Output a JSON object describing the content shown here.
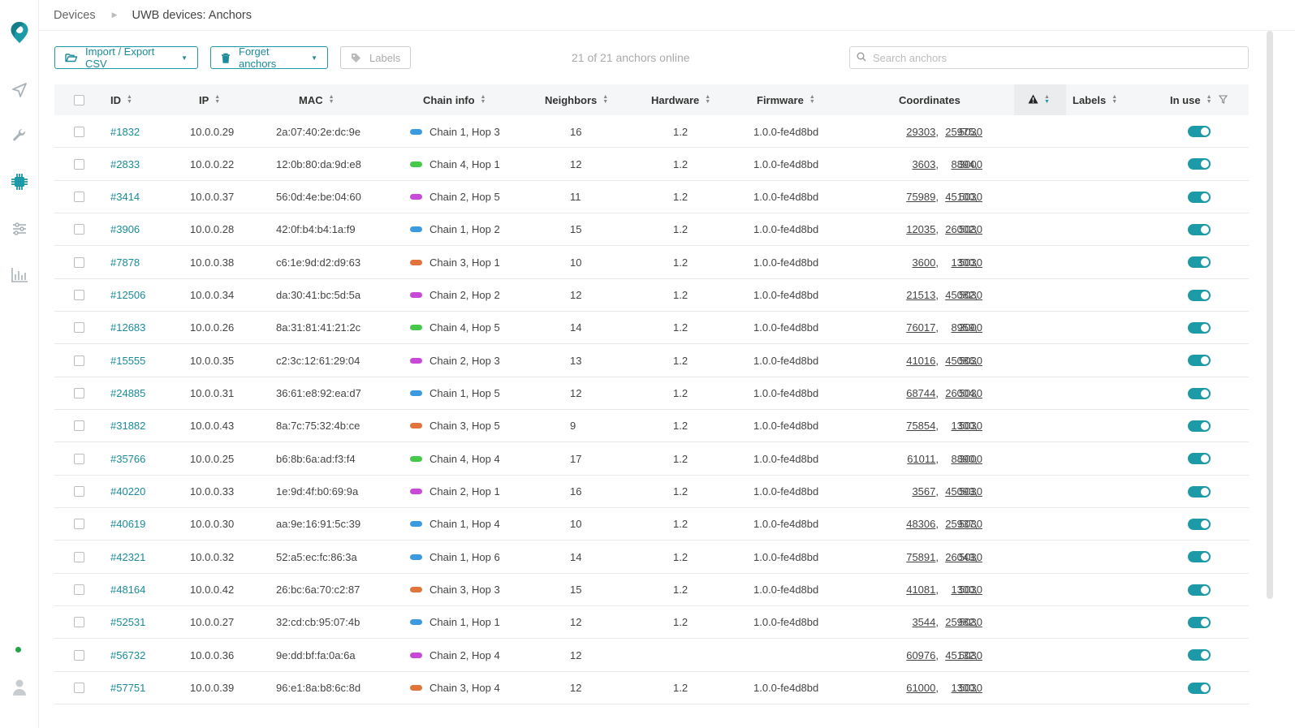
{
  "breadcrumb": {
    "root": "Devices",
    "current": "UWB devices: Anchors"
  },
  "toolbar": {
    "import_label": "Import / Export CSV",
    "forget_label": "Forget anchors",
    "labels_label": "Labels",
    "online_status": "21 of 21 anchors online",
    "search_placeholder": "Search anchors"
  },
  "columns": {
    "id": "ID",
    "ip": "IP",
    "mac": "MAC",
    "chain": "Chain info",
    "neighbors": "Neighbors",
    "hardware": "Hardware",
    "firmware": "Firmware",
    "coordinates": "Coordinates",
    "labels": "Labels",
    "in_use": "In use"
  },
  "colors": {
    "accent": "#1c9aa8",
    "chain1": "#3b9ae0",
    "chain2": "#c849d8",
    "chain3": "#e0743a",
    "chain4": "#46c94a",
    "online": "#1fa44a"
  },
  "rows": [
    {
      "id": "#1832",
      "ip": "10.0.0.29",
      "mac": "2a:07:40:2e:dc:9e",
      "chain": "Chain 1, Hop 3",
      "chain_color": "#3b9ae0",
      "neighbors": "16",
      "hardware": "1.2",
      "firmware": "1.0.0-fe4d8bd",
      "x": "29303",
      "y": "25975",
      "z": "5030",
      "in_use": true
    },
    {
      "id": "#2833",
      "ip": "10.0.0.22",
      "mac": "12:0b:80:da:9d:e8",
      "chain": "Chain 4, Hop 1",
      "chain_color": "#46c94a",
      "neighbors": "12",
      "hardware": "1.2",
      "firmware": "1.0.0-fe4d8bd",
      "x": "3603",
      "y": "8894",
      "z": "3000",
      "in_use": true
    },
    {
      "id": "#3414",
      "ip": "10.0.0.37",
      "mac": "56:0d:4e:be:04:60",
      "chain": "Chain 2, Hop 5",
      "chain_color": "#c849d8",
      "neighbors": "11",
      "hardware": "1.2",
      "firmware": "1.0.0-fe4d8bd",
      "x": "75989",
      "y": "45100",
      "z": "5030",
      "in_use": true
    },
    {
      "id": "#3906",
      "ip": "10.0.0.28",
      "mac": "42:0f:b4:b4:1a:f9",
      "chain": "Chain 1, Hop 2",
      "chain_color": "#3b9ae0",
      "neighbors": "15",
      "hardware": "1.2",
      "firmware": "1.0.0-fe4d8bd",
      "x": "12035",
      "y": "26002",
      "z": "5030",
      "in_use": true
    },
    {
      "id": "#7878",
      "ip": "10.0.0.38",
      "mac": "c6:1e:9d:d2:d9:63",
      "chain": "Chain 3, Hop 1",
      "chain_color": "#e0743a",
      "neighbors": "10",
      "hardware": "1.2",
      "firmware": "1.0.0-fe4d8bd",
      "x": "3600",
      "y": "1300",
      "z": "5030",
      "in_use": true
    },
    {
      "id": "#12506",
      "ip": "10.0.0.34",
      "mac": "da:30:41:bc:5d:5a",
      "chain": "Chain 2, Hop 2",
      "chain_color": "#c849d8",
      "neighbors": "12",
      "hardware": "1.2",
      "firmware": "1.0.0-fe4d8bd",
      "x": "21513",
      "y": "45082",
      "z": "5030",
      "in_use": true
    },
    {
      "id": "#12683",
      "ip": "10.0.0.26",
      "mac": "8a:31:81:41:21:2c",
      "chain": "Chain 4, Hop 5",
      "chain_color": "#46c94a",
      "neighbors": "14",
      "hardware": "1.2",
      "firmware": "1.0.0-fe4d8bd",
      "x": "76017",
      "y": "8959",
      "z": "3000",
      "in_use": true
    },
    {
      "id": "#15555",
      "ip": "10.0.0.35",
      "mac": "c2:3c:12:61:29:04",
      "chain": "Chain 2, Hop 3",
      "chain_color": "#c849d8",
      "neighbors": "13",
      "hardware": "1.2",
      "firmware": "1.0.0-fe4d8bd",
      "x": "41016",
      "y": "45086",
      "z": "5030",
      "in_use": true
    },
    {
      "id": "#24885",
      "ip": "10.0.0.31",
      "mac": "36:61:e8:92:ea:d7",
      "chain": "Chain 1, Hop 5",
      "chain_color": "#3b9ae0",
      "neighbors": "12",
      "hardware": "1.2",
      "firmware": "1.0.0-fe4d8bd",
      "x": "68744",
      "y": "26004",
      "z": "5030",
      "in_use": true
    },
    {
      "id": "#31882",
      "ip": "10.0.0.43",
      "mac": "8a:7c:75:32:4b:ce",
      "chain": "Chain 3, Hop 5",
      "chain_color": "#e0743a",
      "neighbors": "9",
      "hardware": "1.2",
      "firmware": "1.0.0-fe4d8bd",
      "x": "75854",
      "y": "1300",
      "z": "5030",
      "in_use": true
    },
    {
      "id": "#35766",
      "ip": "10.0.0.25",
      "mac": "b6:8b:6a:ad:f3:f4",
      "chain": "Chain 4, Hop 4",
      "chain_color": "#46c94a",
      "neighbors": "17",
      "hardware": "1.2",
      "firmware": "1.0.0-fe4d8bd",
      "x": "61011",
      "y": "8890",
      "z": "3000",
      "in_use": true
    },
    {
      "id": "#40220",
      "ip": "10.0.0.33",
      "mac": "1e:9d:4f:b0:69:9a",
      "chain": "Chain 2, Hop 1",
      "chain_color": "#c849d8",
      "neighbors": "16",
      "hardware": "1.2",
      "firmware": "1.0.0-fe4d8bd",
      "x": "3567",
      "y": "45093",
      "z": "5030",
      "in_use": true
    },
    {
      "id": "#40619",
      "ip": "10.0.0.30",
      "mac": "aa:9e:16:91:5c:39",
      "chain": "Chain 1, Hop 4",
      "chain_color": "#3b9ae0",
      "neighbors": "10",
      "hardware": "1.2",
      "firmware": "1.0.0-fe4d8bd",
      "x": "48306",
      "y": "25937",
      "z": "5030",
      "in_use": true
    },
    {
      "id": "#42321",
      "ip": "10.0.0.32",
      "mac": "52:a5:ec:fc:86:3a",
      "chain": "Chain 1, Hop 6",
      "chain_color": "#3b9ae0",
      "neighbors": "14",
      "hardware": "1.2",
      "firmware": "1.0.0-fe4d8bd",
      "x": "75891",
      "y": "26043",
      "z": "5030",
      "in_use": true
    },
    {
      "id": "#48164",
      "ip": "10.0.0.42",
      "mac": "26:bc:6a:70:c2:87",
      "chain": "Chain 3, Hop 3",
      "chain_color": "#e0743a",
      "neighbors": "15",
      "hardware": "1.2",
      "firmware": "1.0.0-fe4d8bd",
      "x": "41081",
      "y": "1300",
      "z": "5030",
      "in_use": true
    },
    {
      "id": "#52531",
      "ip": "10.0.0.27",
      "mac": "32:cd:cb:95:07:4b",
      "chain": "Chain 1, Hop 1",
      "chain_color": "#3b9ae0",
      "neighbors": "12",
      "hardware": "1.2",
      "firmware": "1.0.0-fe4d8bd",
      "x": "3544",
      "y": "25982",
      "z": "5030",
      "in_use": true
    },
    {
      "id": "#56732",
      "ip": "10.0.0.36",
      "mac": "9e:dd:bf:fa:0a:6a",
      "chain": "Chain 2, Hop 4",
      "chain_color": "#c849d8",
      "neighbors": "12",
      "hardware": "",
      "firmware": "",
      "x": "60976",
      "y": "45132",
      "z": "5030",
      "in_use": true
    },
    {
      "id": "#57751",
      "ip": "10.0.0.39",
      "mac": "96:e1:8a:b8:6c:8d",
      "chain": "Chain 3, Hop 4",
      "chain_color": "#e0743a",
      "neighbors": "12",
      "hardware": "1.2",
      "firmware": "1.0.0-fe4d8bd",
      "x": "61000",
      "y": "1300",
      "z": "5030",
      "in_use": true
    }
  ]
}
